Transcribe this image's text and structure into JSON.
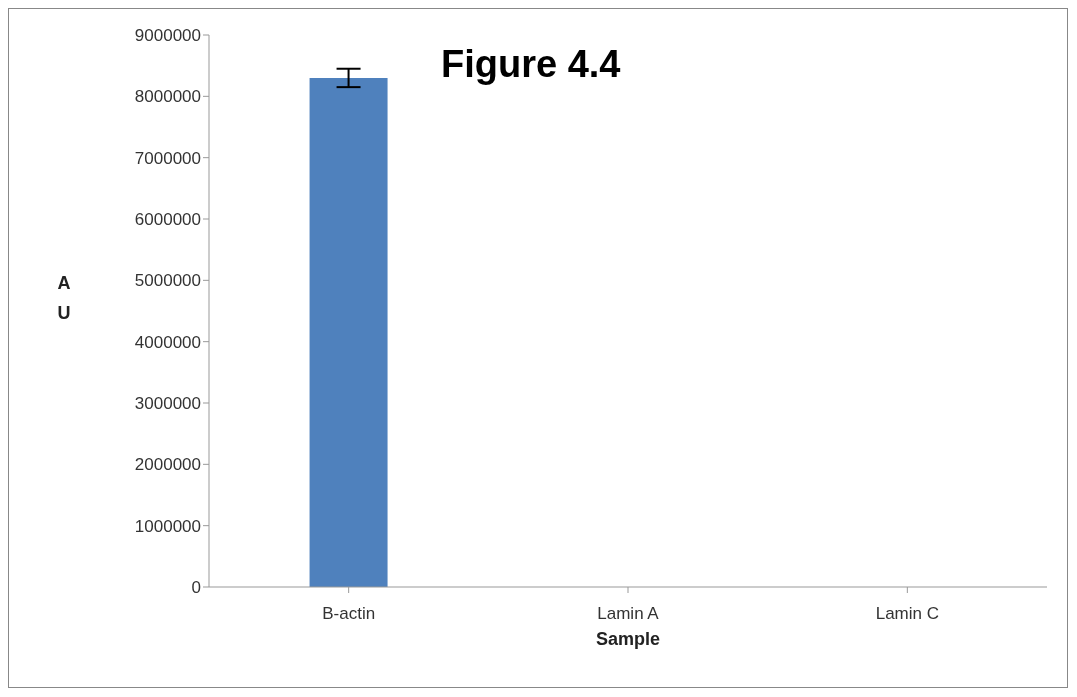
{
  "chart_data": {
    "type": "bar",
    "title": "Figure 4.4",
    "xlabel": "Sample",
    "ylabel": "A U",
    "categories": [
      "B-actin",
      "Lamin A",
      "Lamin C"
    ],
    "values": [
      8300000,
      0,
      0
    ],
    "errors": [
      150000,
      null,
      null
    ],
    "color": "#4f81bd",
    "ylim": [
      0,
      9000000
    ],
    "yticks": [
      0,
      1000000,
      2000000,
      3000000,
      4000000,
      5000000,
      6000000,
      7000000,
      8000000,
      9000000
    ],
    "grid": false,
    "legend": false
  }
}
